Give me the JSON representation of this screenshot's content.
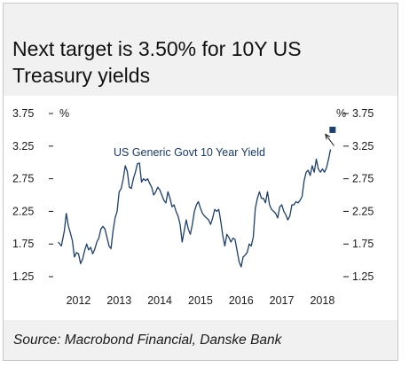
{
  "title": "Next target is 3.50% for 10Y US Treasury yields",
  "source": "Source: Macrobond Financial, Danske Bank",
  "colors": {
    "line": "#1c3f6e",
    "target": "#1c3f6e",
    "header_bg": "#f1f1f1"
  },
  "chart_data": {
    "type": "line",
    "ylabel_left": "%",
    "ylabel_right": "%",
    "y_ticks": [
      "3.75",
      "3.25",
      "2.75",
      "2.25",
      "1.75",
      "1.25"
    ],
    "y_tick_values": [
      3.75,
      3.25,
      2.75,
      2.25,
      1.75,
      1.25
    ],
    "ylim": [
      1.25,
      3.75
    ],
    "x_ticks": [
      "2012",
      "2013",
      "2014",
      "2015",
      "2016",
      "2017",
      "2018"
    ],
    "xlim": [
      2011.9,
      2018.95
    ],
    "grid": false,
    "annotation": "US Generic Govt 10 Year Yield",
    "target": {
      "x": 2018.75,
      "y": 3.5
    },
    "series": [
      {
        "name": "US Generic Govt 10 Year Yield",
        "x": [
          2012.0,
          2012.08,
          2012.15,
          2012.2,
          2012.25,
          2012.3,
          2012.35,
          2012.4,
          2012.45,
          2012.5,
          2012.55,
          2012.6,
          2012.65,
          2012.7,
          2012.75,
          2012.8,
          2012.85,
          2012.9,
          2012.95,
          2013.0,
          2013.05,
          2013.1,
          2013.15,
          2013.2,
          2013.25,
          2013.3,
          2013.35,
          2013.4,
          2013.45,
          2013.5,
          2013.55,
          2013.6,
          2013.65,
          2013.7,
          2013.75,
          2013.8,
          2013.85,
          2013.9,
          2013.95,
          2014.0,
          2014.05,
          2014.1,
          2014.15,
          2014.2,
          2014.25,
          2014.3,
          2014.35,
          2014.4,
          2014.45,
          2014.5,
          2014.55,
          2014.6,
          2014.65,
          2014.7,
          2014.75,
          2014.8,
          2014.85,
          2014.9,
          2014.95,
          2015.0,
          2015.05,
          2015.1,
          2015.15,
          2015.2,
          2015.25,
          2015.3,
          2015.35,
          2015.4,
          2015.45,
          2015.5,
          2015.55,
          2015.6,
          2015.65,
          2015.7,
          2015.75,
          2015.8,
          2015.85,
          2015.9,
          2015.95,
          2016.0,
          2016.05,
          2016.1,
          2016.15,
          2016.2,
          2016.25,
          2016.3,
          2016.35,
          2016.4,
          2016.45,
          2016.5,
          2016.55,
          2016.6,
          2016.65,
          2016.7,
          2016.75,
          2016.8,
          2016.85,
          2016.9,
          2016.95,
          2017.0,
          2017.05,
          2017.1,
          2017.15,
          2017.2,
          2017.25,
          2017.3,
          2017.35,
          2017.4,
          2017.45,
          2017.5,
          2017.55,
          2017.6,
          2017.65,
          2017.7,
          2017.75,
          2017.8,
          2017.85,
          2017.9,
          2017.95,
          2018.0,
          2018.05,
          2018.1,
          2018.15,
          2018.2,
          2018.25,
          2018.3,
          2018.35,
          2018.4,
          2018.45,
          2018.5,
          2018.55,
          2018.6,
          2018.65,
          2018.7
        ],
        "values": [
          1.78,
          1.72,
          1.95,
          2.22,
          2.03,
          1.92,
          1.8,
          1.55,
          1.62,
          1.6,
          1.45,
          1.52,
          1.65,
          1.75,
          1.66,
          1.7,
          1.6,
          1.67,
          1.78,
          1.84,
          1.98,
          2.02,
          1.98,
          1.85,
          1.72,
          1.68,
          1.95,
          2.15,
          2.25,
          2.55,
          2.6,
          2.75,
          2.95,
          2.86,
          2.62,
          2.6,
          2.75,
          2.85,
          2.98,
          2.99,
          2.7,
          2.75,
          2.72,
          2.75,
          2.68,
          2.62,
          2.5,
          2.55,
          2.62,
          2.58,
          2.5,
          2.42,
          2.38,
          2.55,
          2.45,
          2.32,
          2.35,
          2.25,
          2.18,
          2.05,
          1.78,
          1.95,
          2.12,
          1.98,
          1.9,
          2.05,
          2.25,
          2.35,
          2.4,
          2.3,
          2.22,
          2.18,
          2.15,
          2.12,
          2.05,
          2.15,
          2.28,
          2.25,
          2.28,
          2.1,
          1.88,
          1.72,
          1.9,
          1.85,
          1.78,
          1.84,
          1.82,
          1.65,
          1.48,
          1.4,
          1.55,
          1.58,
          1.62,
          1.75,
          1.72,
          1.86,
          2.3,
          2.45,
          2.55,
          2.45,
          2.45,
          2.38,
          2.55,
          2.35,
          2.28,
          2.25,
          2.22,
          2.15,
          2.32,
          2.35,
          2.25,
          2.2,
          2.12,
          2.18,
          2.35,
          2.35,
          2.4,
          2.38,
          2.42,
          2.48,
          2.72,
          2.85,
          2.88,
          2.8,
          2.95,
          2.85,
          3.05,
          2.9,
          2.85,
          2.9,
          2.85,
          2.92,
          3.05,
          3.2
        ]
      }
    ]
  }
}
